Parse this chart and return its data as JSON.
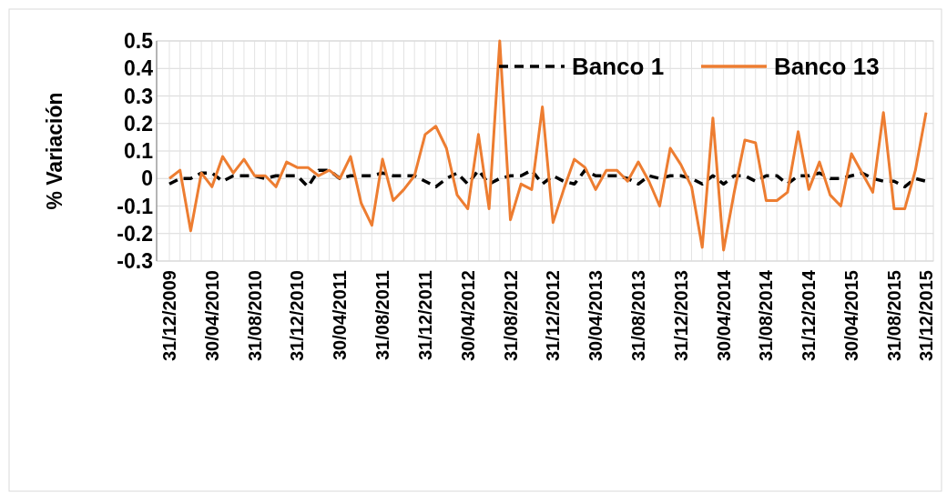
{
  "chart_data": {
    "type": "line",
    "ylabel": "% Variación",
    "categories": [
      "31/12/2009",
      null,
      null,
      null,
      "30/04/2010",
      null,
      null,
      null,
      "31/08/2010",
      null,
      null,
      null,
      "31/12/2010",
      null,
      null,
      null,
      "30/04/2011",
      null,
      null,
      null,
      "31/08/2011",
      null,
      null,
      null,
      "31/12/2011",
      null,
      null,
      null,
      "30/04/2012",
      null,
      null,
      null,
      "31/08/2012",
      null,
      null,
      null,
      "31/12/2012",
      null,
      null,
      null,
      "30/04/2013",
      null,
      null,
      null,
      "31/08/2013",
      null,
      null,
      null,
      "31/12/2013",
      null,
      null,
      null,
      "30/04/2014",
      null,
      null,
      null,
      "31/08/2014",
      null,
      null,
      null,
      "31/12/2014",
      null,
      null,
      null,
      "30/04/2015",
      null,
      null,
      null,
      "31/08/2015",
      null,
      null,
      "31/12/2015"
    ],
    "series": [
      {
        "name": "Banco 1",
        "color": "#000000",
        "line_style": "dashed",
        "values": [
          -0.02,
          0.0,
          0.0,
          0.02,
          0.02,
          -0.01,
          0.01,
          0.01,
          0.01,
          0.0,
          0.01,
          0.01,
          0.01,
          -0.03,
          0.03,
          0.03,
          0.0,
          0.01,
          0.01,
          0.01,
          0.02,
          0.01,
          0.01,
          0.01,
          -0.01,
          -0.03,
          0.0,
          0.02,
          -0.02,
          0.03,
          -0.02,
          0.0,
          0.01,
          0.01,
          0.03,
          -0.02,
          0.01,
          -0.01,
          -0.02,
          0.03,
          0.01,
          0.01,
          0.01,
          0.0,
          -0.02,
          0.01,
          0.0,
          0.01,
          0.01,
          0.0,
          -0.02,
          0.01,
          -0.02,
          0.01,
          0.01,
          -0.01,
          0.01,
          0.01,
          -0.02,
          0.01,
          0.01,
          0.02,
          0.0,
          0.0,
          0.01,
          0.02,
          0.0,
          -0.01,
          -0.01,
          -0.03,
          0.0,
          -0.01
        ]
      },
      {
        "name": "Banco 13",
        "color": "#ed7d31",
        "line_style": "solid",
        "values": [
          0.0,
          0.03,
          -0.19,
          0.02,
          -0.03,
          0.08,
          0.02,
          0.07,
          0.01,
          0.01,
          -0.03,
          0.06,
          0.04,
          0.04,
          0.01,
          0.03,
          0.0,
          0.08,
          -0.09,
          -0.17,
          0.07,
          -0.08,
          -0.04,
          0.01,
          0.16,
          0.19,
          0.11,
          -0.06,
          -0.11,
          0.16,
          -0.11,
          0.5,
          -0.15,
          -0.02,
          -0.04,
          0.26,
          -0.16,
          -0.04,
          0.07,
          0.04,
          -0.04,
          0.03,
          0.03,
          -0.01,
          0.06,
          -0.01,
          -0.1,
          0.11,
          0.05,
          -0.03,
          -0.25,
          0.22,
          -0.26,
          -0.05,
          0.14,
          0.13,
          -0.08,
          -0.08,
          -0.05,
          0.17,
          -0.04,
          0.06,
          -0.06,
          -0.1,
          0.09,
          0.02,
          -0.05,
          0.24,
          -0.11,
          -0.11,
          0.03,
          0.24
        ]
      }
    ],
    "ylim": [
      -0.3,
      0.5
    ],
    "yticks": [
      -0.3,
      -0.2,
      -0.1,
      0,
      0.1,
      0.2,
      0.3,
      0.4,
      0.5
    ],
    "grid": true,
    "legend": "top right",
    "marker": "none"
  }
}
